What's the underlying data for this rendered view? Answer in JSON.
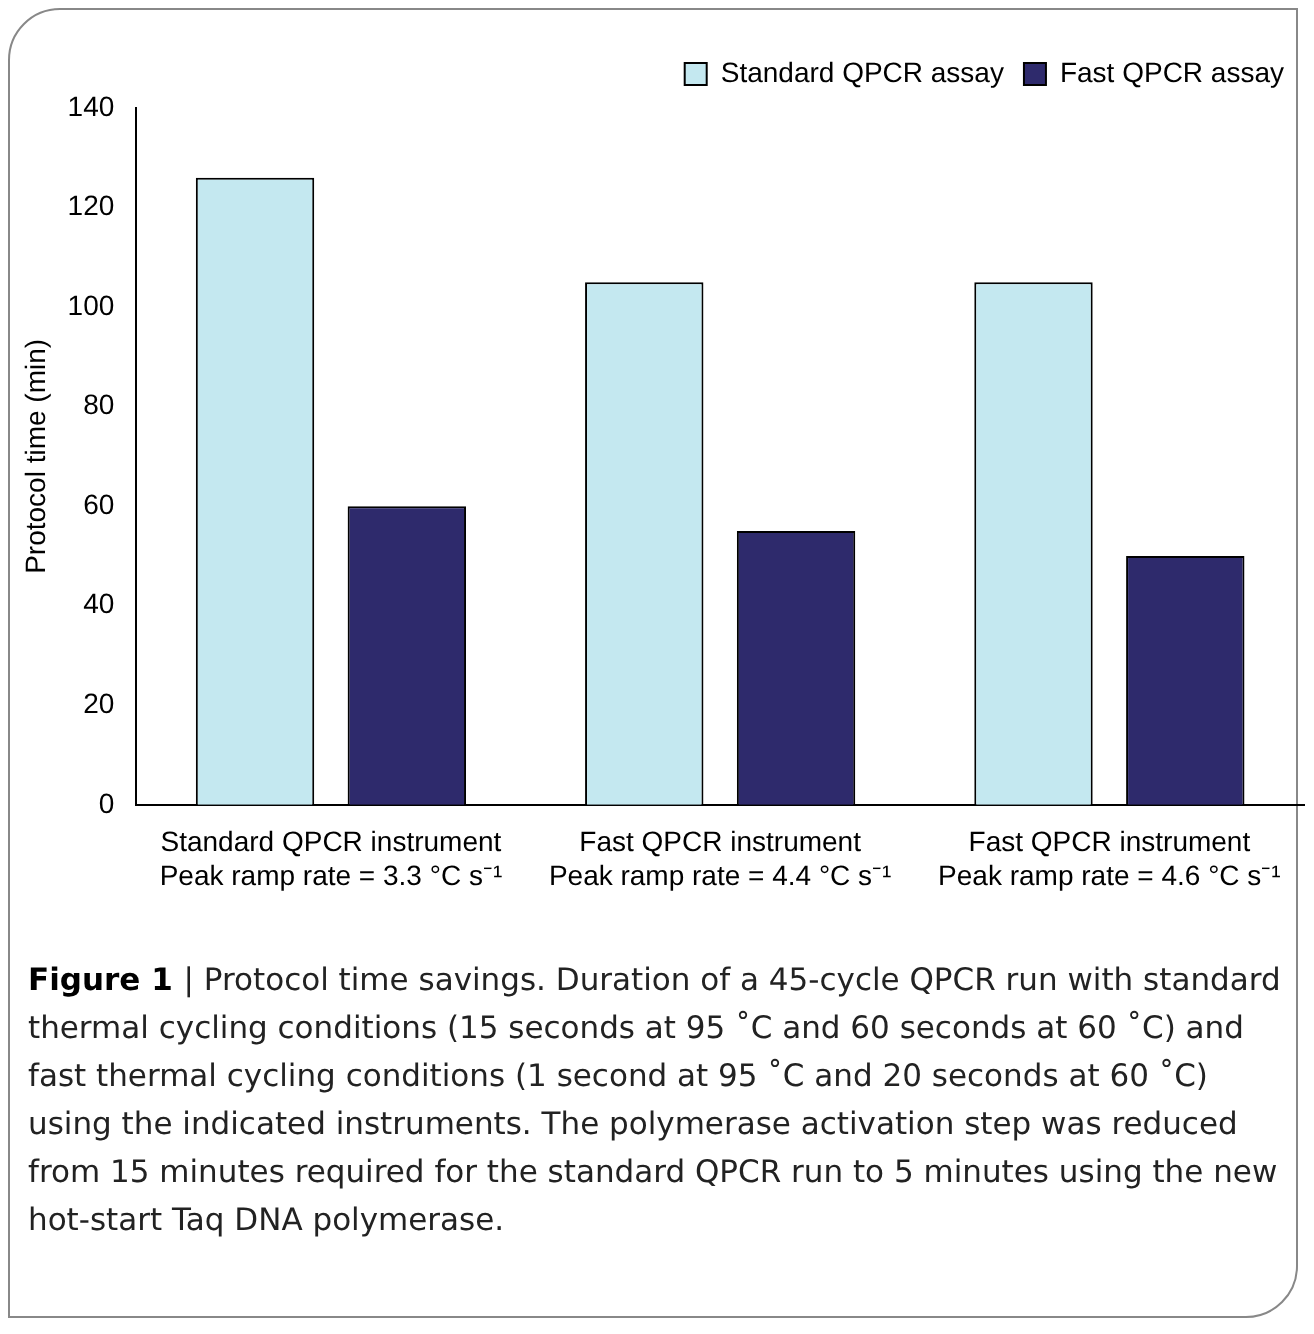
{
  "chart_data": {
    "type": "bar",
    "ylabel": "Protocol time (min)",
    "categories": [
      "Standard QPCR instrument\nPeak ramp rate = 3.3 °C s⁻¹",
      "Fast QPCR instrument\nPeak ramp rate = 4.4 °C s⁻¹",
      "Fast QPCR instrument\nPeak ramp rate = 4.6 °C s⁻¹"
    ],
    "series": [
      {
        "name": "Standard QPCR assay",
        "color": "#c4e8f0",
        "values": [
          126,
          105,
          105
        ]
      },
      {
        "name": "Fast QPCR assay",
        "color": "#2e2a6c",
        "values": [
          60,
          55,
          50
        ]
      }
    ],
    "ylim": [
      0,
      140
    ],
    "yticks": [
      0,
      20,
      40,
      60,
      80,
      100,
      120,
      140
    ],
    "grid": false,
    "legend": "top right",
    "annotations": [
      "Figure 1",
      "| Protocol time savings. Duration of a 45-cycle QPCR run with standard thermal cycling conditions (15 seconds at 95 ˚C and 60 seconds at 60 ˚C) and fast thermal cycling conditions (1 second at 95 ˚C and 20 seconds at 60 ˚C) using the indicated instruments. The polymerase activation step was reduced from 15 minutes required for the standard QPCR run to 5 minutes using the new hot-start Taq DNA polymerase."
    ]
  }
}
